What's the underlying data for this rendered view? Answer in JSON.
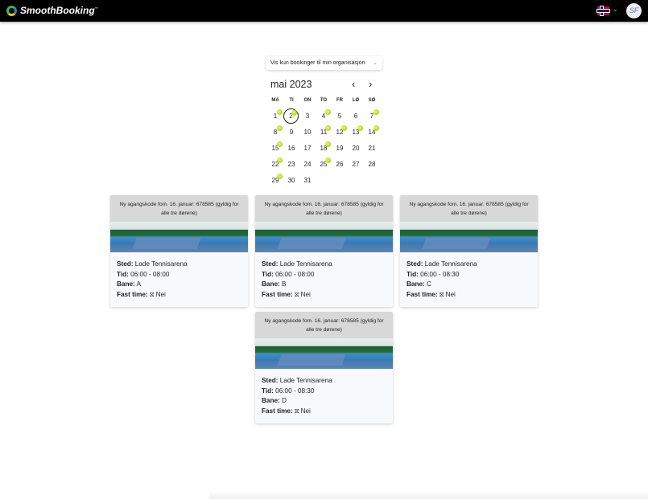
{
  "header": {
    "brand": "SmoothBooking",
    "trademark": "™",
    "language": "Norwegian flag",
    "avatar": "SF"
  },
  "filter": {
    "label": "Vis kun bookinger til min organisasjon"
  },
  "calendar": {
    "month_label": "mai 2023",
    "weekdays": [
      "MA",
      "TI",
      "ON",
      "TO",
      "FR",
      "LØ",
      "SØ"
    ],
    "first_weekday_index": 0,
    "days_in_month": 31,
    "today": 2,
    "booked_days": [
      1,
      2,
      4,
      7,
      8,
      11,
      12,
      13,
      14,
      15,
      18,
      22,
      25,
      29
    ],
    "prev_icon": "‹",
    "next_icon": "›"
  },
  "labels": {
    "sted": "Sted:",
    "tid": "Tid:",
    "bane": "Bane:",
    "fast": "Fast time:"
  },
  "bookings": [
    {
      "notice": "Ny agangskode fom. 16. januar: 678585 (gyldig for alle tre dørene)",
      "sted": "Lade Tennisarena",
      "tid": "06:00 - 08:00",
      "bane": "A",
      "fast": "Nei"
    },
    {
      "notice": "Ny agangskode fom. 16. januar: 678585 (gyldig for alle tre dørene)",
      "sted": "Lade Tennisarena",
      "tid": "06:00 - 08:00",
      "bane": "B",
      "fast": "Nei"
    },
    {
      "notice": "Ny agangskode fom. 16. januar: 678585 (gyldig for alle tre dørene)",
      "sted": "Lade Tennisarena",
      "tid": "06:00 - 08:30",
      "bane": "C",
      "fast": "Nei"
    },
    {
      "notice": "Ny agangskode fom. 16. januar: 678585 (gyldig for alle tre dørene)",
      "sted": "Lade Tennisarena",
      "tid": "06:00 - 08:30",
      "bane": "D",
      "fast": "Nei"
    }
  ]
}
